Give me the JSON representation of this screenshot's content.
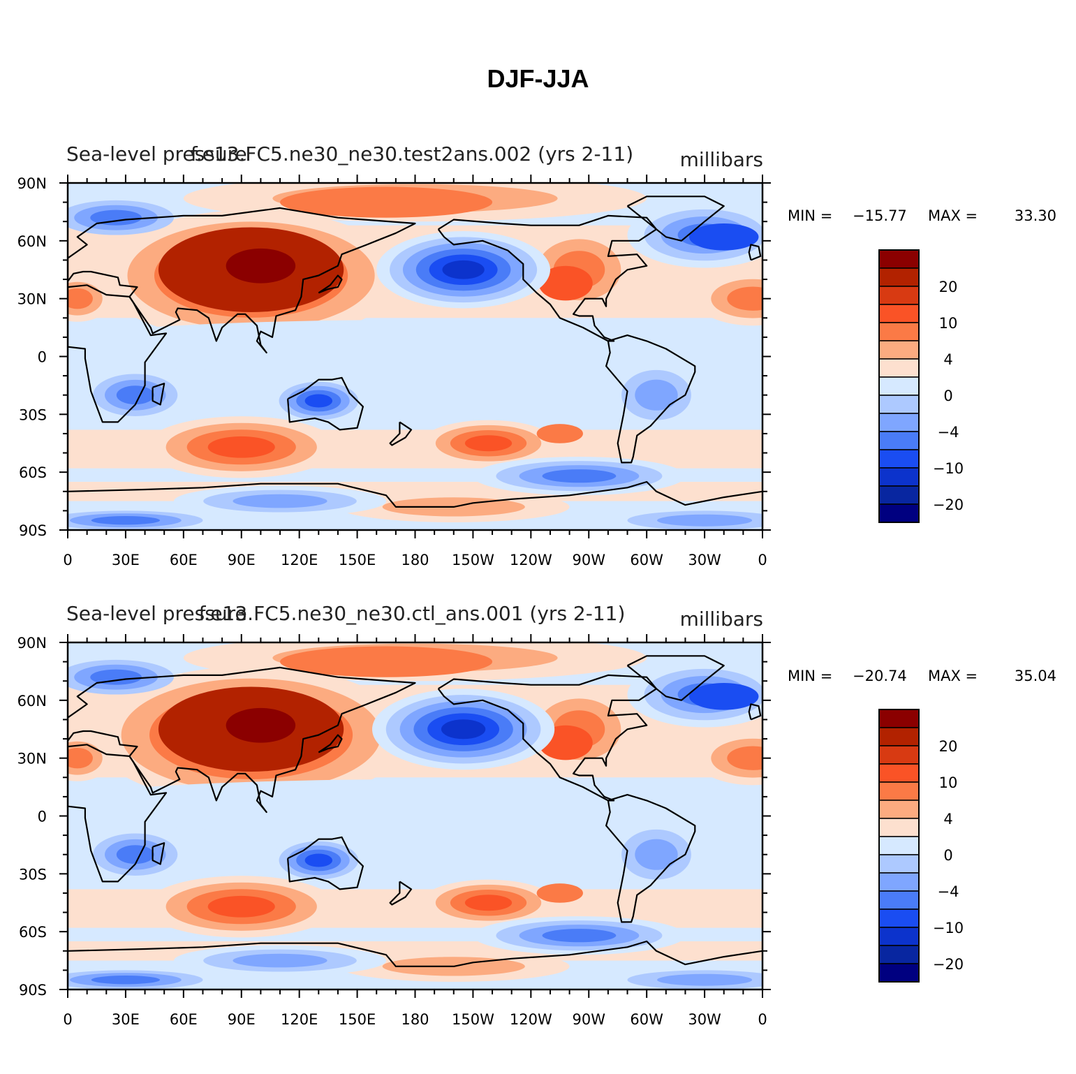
{
  "title": "DJF-JJA",
  "panels": [
    {
      "left_title": "Sea-level pressure",
      "center_title": "f.e13.FC5.ne30_ne30.test2ans.002 (yrs 2-11)",
      "right_title": "millibars",
      "stats": {
        "min_label": "MIN =",
        "min": "−15.77",
        "max_label": "MAX =",
        "max": "33.30"
      }
    },
    {
      "left_title": "Sea-level pressure",
      "center_title": "f.e13.FC5.ne30_ne30.ctl_ans.001 (yrs 2-11)",
      "right_title": "millibars",
      "stats": {
        "min_label": "MIN =",
        "min": "−20.74",
        "max_label": "MAX =",
        "max": "35.04"
      }
    }
  ],
  "axes": {
    "lat_labels": [
      "90N",
      "60N",
      "30N",
      "0",
      "30S",
      "60S",
      "90S"
    ],
    "lon_labels": [
      "0",
      "30E",
      "60E",
      "90E",
      "120E",
      "150E",
      "180",
      "150W",
      "120W",
      "90W",
      "60W",
      "30W",
      "0"
    ]
  },
  "colorbar": {
    "colors": [
      "#8b0000",
      "#b22200",
      "#d83a12",
      "#fa5326",
      "#fb7a46",
      "#fcab80",
      "#fde0cf",
      "#d6e9ff",
      "#adc9ff",
      "#7fa6ff",
      "#4a7cf7",
      "#1a4df2",
      "#0c33cc",
      "#0826a0",
      "#000080"
    ],
    "tick_labels": [
      "20",
      "10",
      "4",
      "0",
      "−4",
      "−10",
      "−20"
    ]
  },
  "chart_data": {
    "type": "heatmap",
    "projection": "cylindrical equidistant, 0 to 360 longitude",
    "variable": "Sea-level pressure difference DJF minus JJA",
    "units": "millibars",
    "contour_levels": [
      -30,
      -25,
      -20,
      -15,
      -10,
      -7,
      -4,
      -2,
      0,
      2,
      4,
      7,
      10,
      15,
      20,
      25
    ],
    "xlim": [
      0,
      360
    ],
    "ylim": [
      -90,
      90
    ],
    "panels": [
      {
        "case": "f.e13.FC5.ne30_ne30.test2ans.002 (yrs 2-11)",
        "min": -15.77,
        "max": 33.3
      },
      {
        "case": "f.e13.FC5.ne30_ne30.ctl_ans.001 (yrs 2-11)",
        "min": -20.74,
        "max": 35.04
      }
    ]
  }
}
